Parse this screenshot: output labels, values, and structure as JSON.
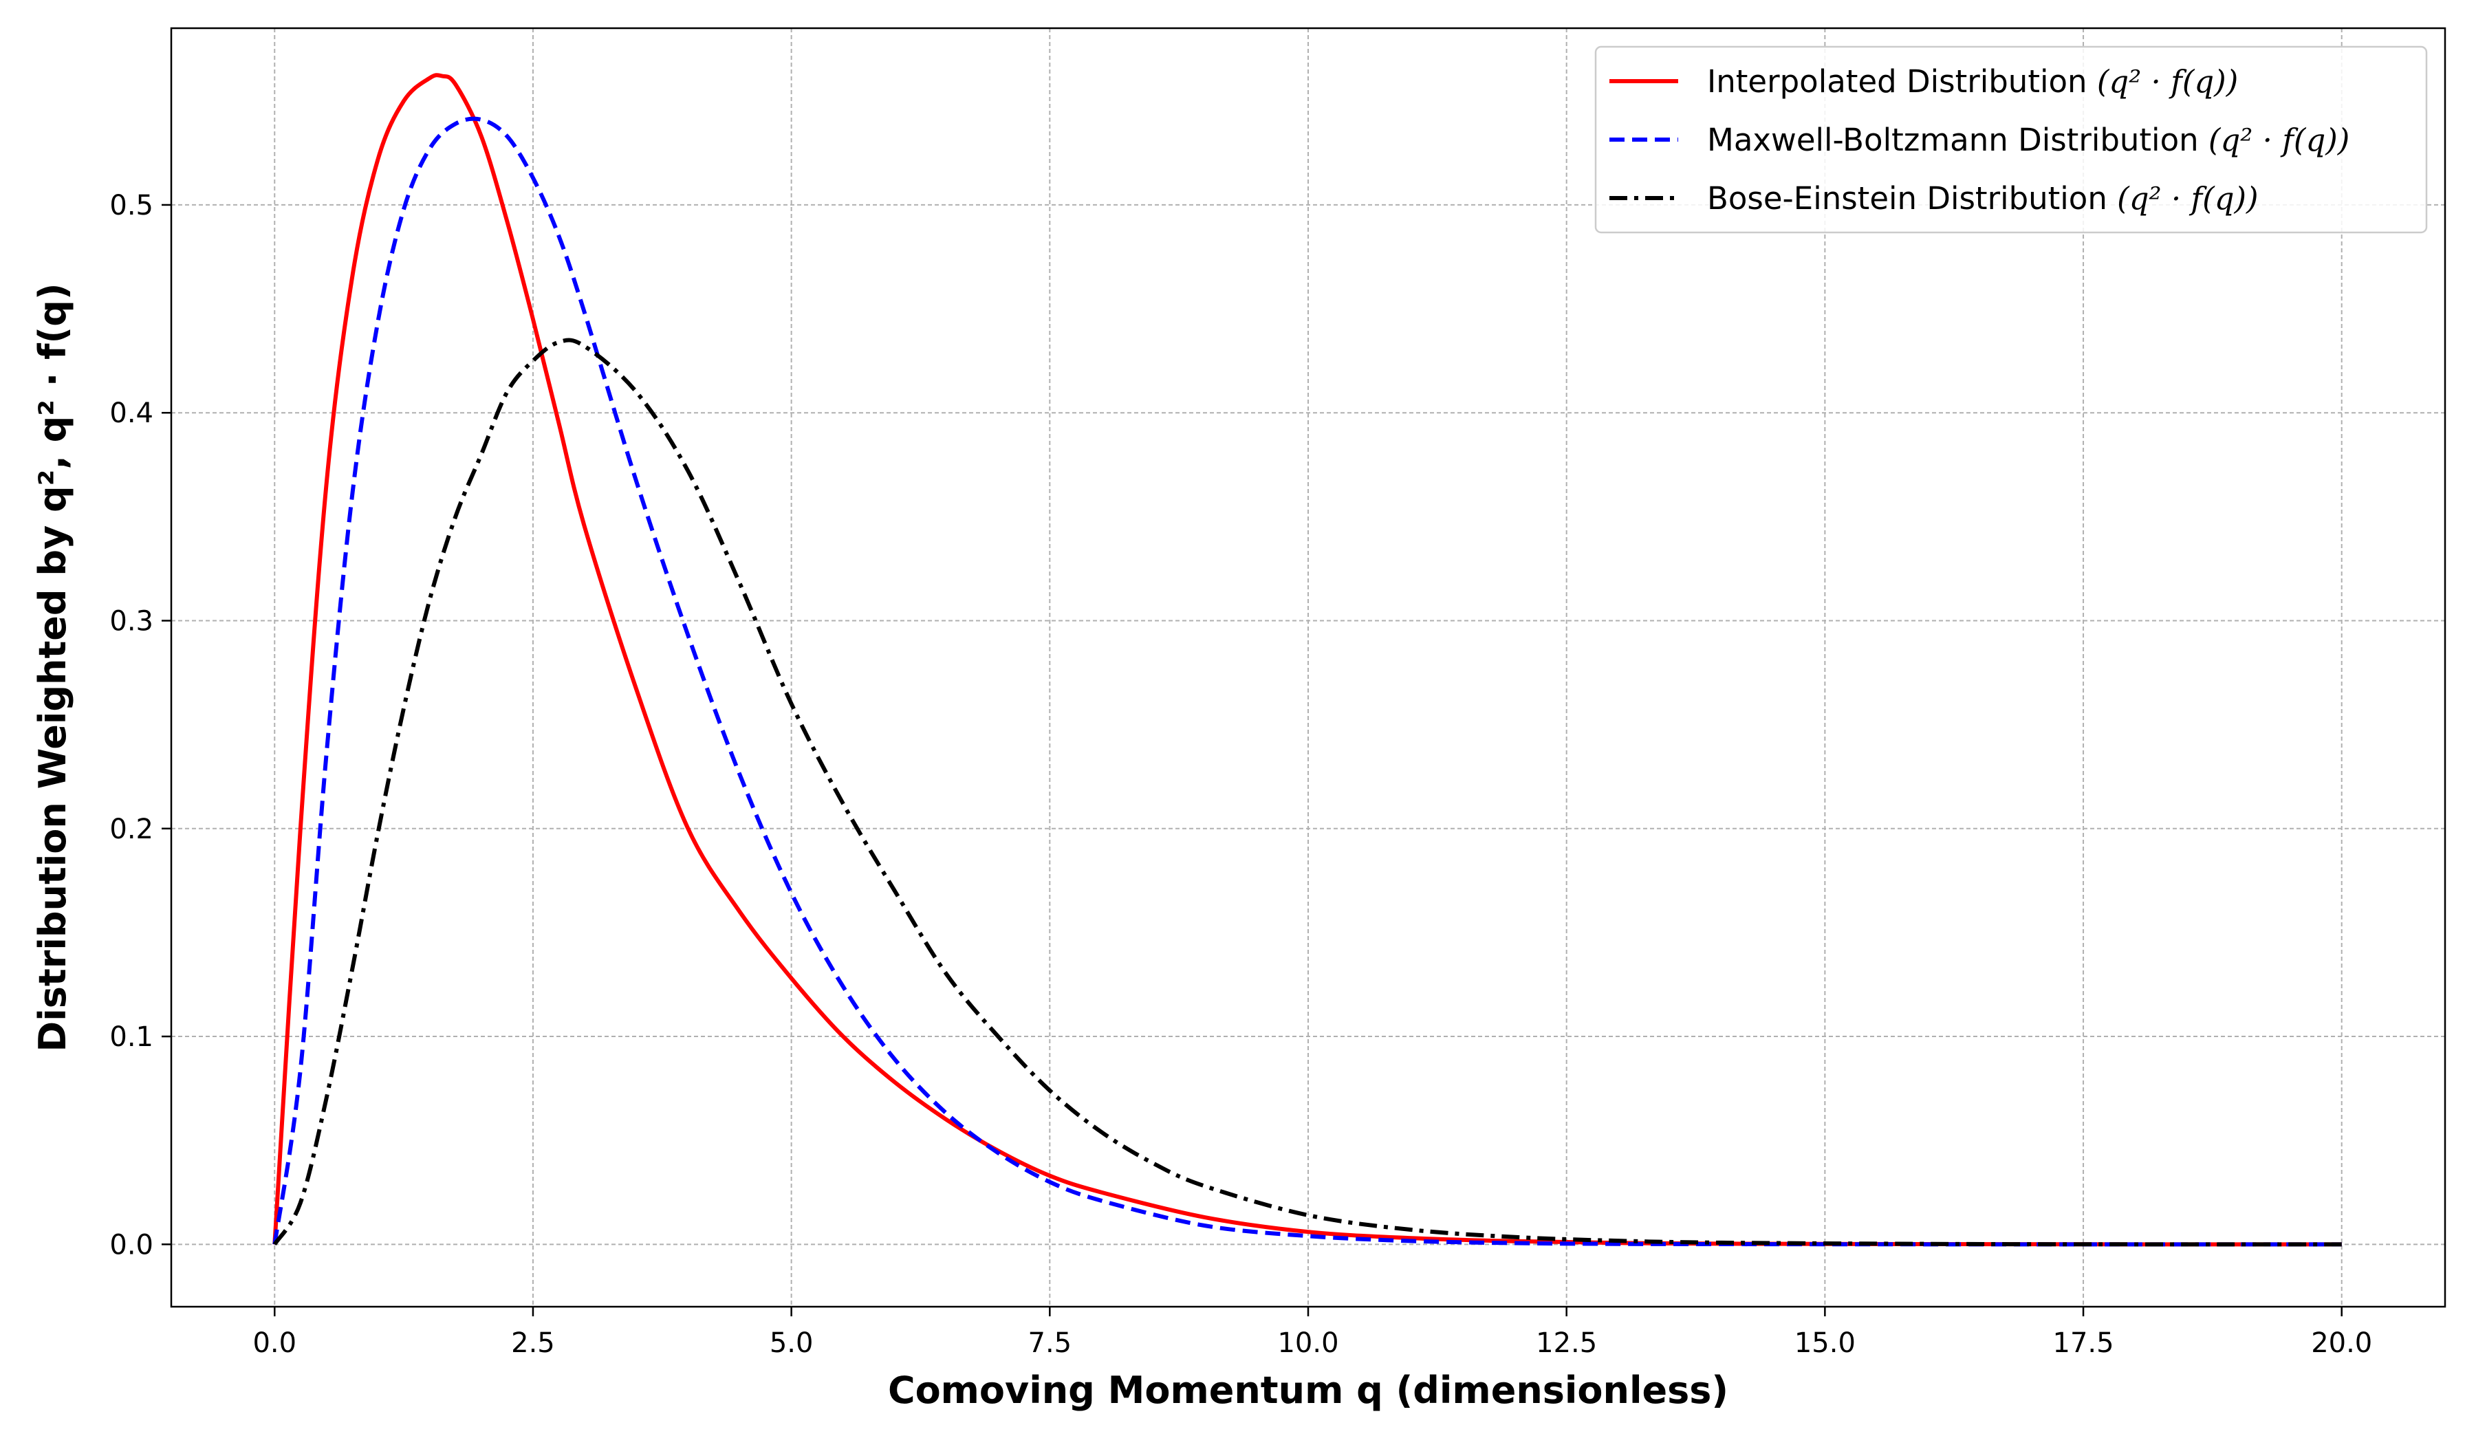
{
  "chart_data": {
    "type": "line",
    "xlabel": "Comoving Momentum q (dimensionless)",
    "ylabel": "Distribution Weighted by q², q² · f(q)",
    "xlim": [
      -1.0,
      21.0
    ],
    "ylim": [
      -0.03,
      0.585
    ],
    "x_ticks": [
      0.0,
      2.5,
      5.0,
      7.5,
      10.0,
      12.5,
      15.0,
      17.5,
      20.0
    ],
    "x_tick_labels": [
      "0.0",
      "2.5",
      "5.0",
      "7.5",
      "10.0",
      "12.5",
      "15.0",
      "17.5",
      "20.0"
    ],
    "y_ticks": [
      0.0,
      0.1,
      0.2,
      0.3,
      0.4,
      0.5
    ],
    "y_tick_labels": [
      "0.0",
      "0.1",
      "0.2",
      "0.3",
      "0.4",
      "0.5"
    ],
    "grid": true,
    "legend_position": "top-right",
    "series": [
      {
        "name": "Interpolated Distribution (q² · f(q))",
        "legend_text": "Interpolated Distribution ",
        "legend_math": "(q² · f(q))",
        "color": "#ff0000",
        "line_style": "solid",
        "x": [
          0,
          0.25,
          0.5,
          0.75,
          1.0,
          1.25,
          1.5,
          1.62,
          1.75,
          2.0,
          2.25,
          2.5,
          2.75,
          3.0,
          3.5,
          4.0,
          4.5,
          5.0,
          5.5,
          6.0,
          6.5,
          7.0,
          7.5,
          8.0,
          9.0,
          10.0,
          11.0,
          12.0,
          13.0,
          14.0,
          16.0,
          18.0,
          20.0
        ],
        "y": [
          0,
          0.2,
          0.365,
          0.465,
          0.522,
          0.55,
          0.561,
          0.562,
          0.558,
          0.533,
          0.492,
          0.445,
          0.395,
          0.345,
          0.267,
          0.2,
          0.16,
          0.128,
          0.1,
          0.078,
          0.06,
          0.045,
          0.033,
          0.025,
          0.013,
          0.006,
          0.003,
          0.0015,
          0.0007,
          0.0003,
          0.0001,
          0.0,
          0.0
        ]
      },
      {
        "name": "Maxwell-Boltzmann Distribution (q² · f(q))",
        "legend_text": "Maxwell-Boltzmann Distribution ",
        "legend_math": "(q² · f(q))",
        "color": "#0000ff",
        "line_style": "dashed",
        "x": [
          0,
          0.25,
          0.5,
          0.75,
          1.0,
          1.25,
          1.5,
          1.75,
          2.0,
          2.25,
          2.5,
          2.75,
          3.0,
          3.5,
          4.0,
          4.5,
          5.0,
          5.5,
          6.0,
          6.5,
          7.0,
          7.5,
          8.0,
          9.0,
          10.0,
          11.0,
          12.0,
          13.0,
          14.0,
          16.0,
          18.0,
          20.0
        ],
        "y": [
          0,
          0.084,
          0.235,
          0.36,
          0.444,
          0.498,
          0.527,
          0.539,
          0.541,
          0.533,
          0.513,
          0.485,
          0.448,
          0.367,
          0.293,
          0.226,
          0.169,
          0.124,
          0.089,
          0.063,
          0.044,
          0.03,
          0.021,
          0.009,
          0.004,
          0.0016,
          0.0006,
          0.0002,
          0.0001,
          0.0,
          0.0,
          0.0
        ]
      },
      {
        "name": "Bose-Einstein Distribution (q² · f(q))",
        "legend_text": "Bose-Einstein Distribution ",
        "legend_math": "(q² · f(q))",
        "color": "#000000",
        "line_style": "dashdot",
        "x": [
          0,
          0.25,
          0.5,
          0.75,
          1.0,
          1.25,
          1.5,
          1.75,
          2.0,
          2.25,
          2.5,
          2.75,
          3.0,
          3.5,
          4.0,
          4.5,
          5.0,
          5.5,
          6.0,
          6.5,
          7.0,
          7.5,
          8.0,
          8.5,
          9.0,
          10.0,
          11.0,
          12.0,
          13.0,
          14.0,
          16.0,
          18.0,
          20.0
        ],
        "y": [
          0,
          0.02,
          0.07,
          0.132,
          0.198,
          0.258,
          0.31,
          0.35,
          0.38,
          0.41,
          0.425,
          0.434,
          0.432,
          0.41,
          0.372,
          0.318,
          0.26,
          0.212,
          0.17,
          0.13,
          0.1,
          0.074,
          0.054,
          0.039,
          0.028,
          0.014,
          0.007,
          0.0035,
          0.0017,
          0.0008,
          0.0002,
          0.0,
          0.0
        ]
      }
    ]
  }
}
